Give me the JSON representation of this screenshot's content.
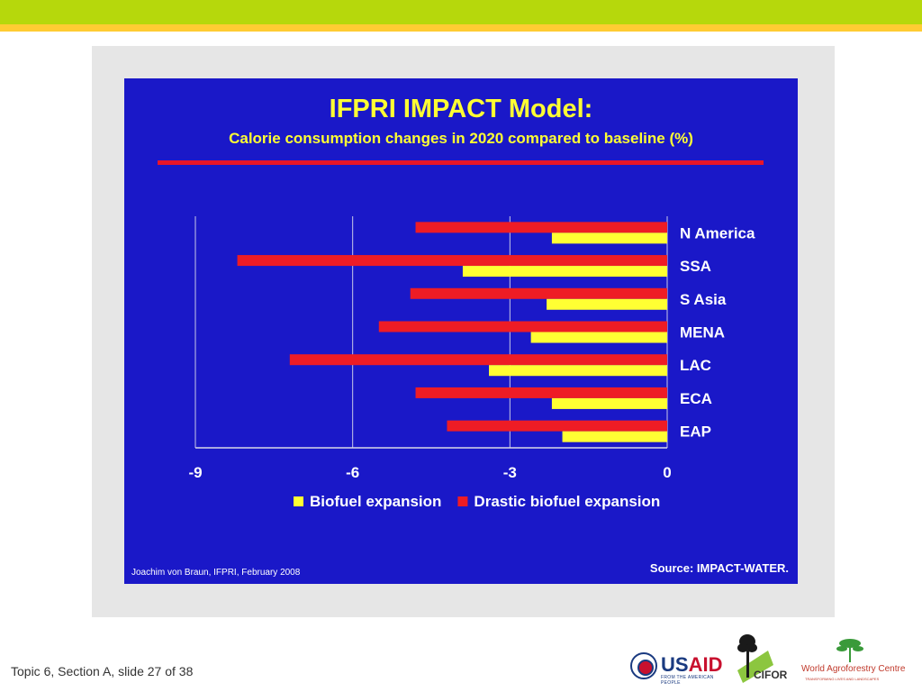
{
  "slide": {
    "footer": "Topic 6, Section A, slide 27 of 38"
  },
  "colors": {
    "top_band": "#b6d80c",
    "top_stripe": "#ffcc33",
    "panel": "#1a18c8",
    "title_text": "#ffff33",
    "rule": "#e8152a"
  },
  "chart_data": {
    "type": "bar",
    "orientation": "horizontal",
    "title": "IFPRI IMPACT Model:",
    "subtitle": "Calorie consumption changes in 2020 compared to baseline (%)",
    "categories": [
      "N America",
      "SSA",
      "S Asia",
      "MENA",
      "LAC",
      "ECA",
      "EAP"
    ],
    "series": [
      {
        "name": "Biofuel expansion",
        "color": "#ffff33",
        "values": [
          -2.2,
          -3.9,
          -2.3,
          -2.6,
          -3.4,
          -2.2,
          -2.0
        ]
      },
      {
        "name": "Drastic biofuel expansion",
        "color": "#ee1c25",
        "values": [
          -4.8,
          -8.2,
          -4.9,
          -5.5,
          -7.2,
          -4.8,
          -4.2
        ]
      }
    ],
    "x_ticks": [
      "-9",
      "-6",
      "-3",
      "0"
    ],
    "xlim": [
      -9,
      0
    ],
    "grid": "vertical",
    "legend": "bottom",
    "credit": "Joachim von Braun, IFPRI, February 2008",
    "source": "Source: IMPACT-WATER."
  },
  "logos": {
    "usaid_word_a": "US",
    "usaid_word_b": "AID",
    "usaid_tag": "FROM THE AMERICAN PEOPLE",
    "cifor": "CIFOR",
    "icraf_name": "World Agroforestry Centre",
    "icraf_tag": "TRANSFORMING LIVES AND LANDSCAPES"
  }
}
